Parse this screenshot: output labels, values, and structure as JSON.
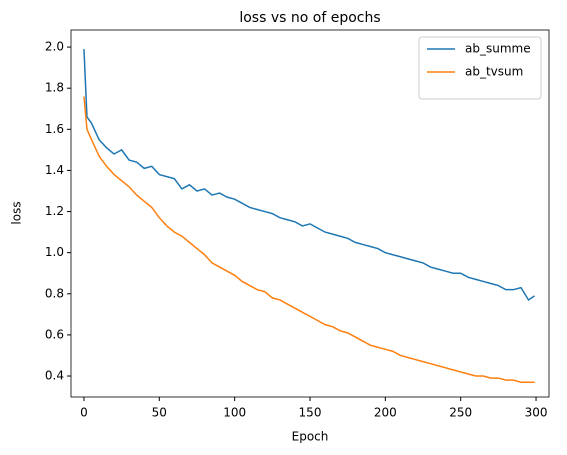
{
  "chart_data": {
    "type": "line",
    "title": "loss vs no of epochs",
    "xlabel": "Epoch",
    "ylabel": "loss",
    "x": [
      0,
      2,
      5,
      10,
      15,
      20,
      25,
      30,
      35,
      40,
      45,
      50,
      55,
      60,
      65,
      70,
      75,
      80,
      85,
      90,
      95,
      100,
      105,
      110,
      115,
      120,
      125,
      130,
      135,
      140,
      145,
      150,
      155,
      160,
      165,
      170,
      175,
      180,
      185,
      190,
      195,
      200,
      205,
      210,
      215,
      220,
      225,
      230,
      235,
      240,
      245,
      250,
      255,
      260,
      265,
      270,
      275,
      280,
      285,
      290,
      295,
      299
    ],
    "series": [
      {
        "name": "ab_summe",
        "color": "#1f77b4",
        "values": [
          1.99,
          1.66,
          1.63,
          1.55,
          1.51,
          1.48,
          1.5,
          1.45,
          1.44,
          1.41,
          1.42,
          1.38,
          1.37,
          1.36,
          1.31,
          1.33,
          1.3,
          1.31,
          1.28,
          1.29,
          1.27,
          1.26,
          1.24,
          1.22,
          1.21,
          1.2,
          1.19,
          1.17,
          1.16,
          1.15,
          1.13,
          1.14,
          1.12,
          1.1,
          1.09,
          1.08,
          1.07,
          1.05,
          1.04,
          1.03,
          1.02,
          1.0,
          0.99,
          0.98,
          0.97,
          0.96,
          0.95,
          0.93,
          0.92,
          0.91,
          0.9,
          0.9,
          0.88,
          0.87,
          0.86,
          0.85,
          0.84,
          0.82,
          0.82,
          0.83,
          0.77,
          0.79
        ]
      },
      {
        "name": "ab_tvsum",
        "color": "#ff7f0e",
        "values": [
          1.76,
          1.6,
          1.55,
          1.47,
          1.42,
          1.38,
          1.35,
          1.32,
          1.28,
          1.25,
          1.22,
          1.17,
          1.13,
          1.1,
          1.08,
          1.05,
          1.02,
          0.99,
          0.95,
          0.93,
          0.91,
          0.89,
          0.86,
          0.84,
          0.82,
          0.81,
          0.78,
          0.77,
          0.75,
          0.73,
          0.71,
          0.69,
          0.67,
          0.65,
          0.64,
          0.62,
          0.61,
          0.59,
          0.57,
          0.55,
          0.54,
          0.53,
          0.52,
          0.5,
          0.49,
          0.48,
          0.47,
          0.46,
          0.45,
          0.44,
          0.43,
          0.42,
          0.41,
          0.4,
          0.4,
          0.39,
          0.39,
          0.38,
          0.38,
          0.37,
          0.37,
          0.37
        ]
      }
    ],
    "xlim": [
      -8.6,
      308.6
    ],
    "xticks": [
      0,
      50,
      100,
      150,
      200,
      250,
      300
    ],
    "ylim": [
      0.298,
      2.083
    ],
    "yticks": [
      0.4,
      0.6,
      0.8,
      {
        "value": 1,
        "label": "1.0"
      },
      1.2,
      1.4,
      1.6,
      1.8,
      {
        "value": 2,
        "label": "2.0"
      }
    ],
    "legend": "upper right"
  }
}
